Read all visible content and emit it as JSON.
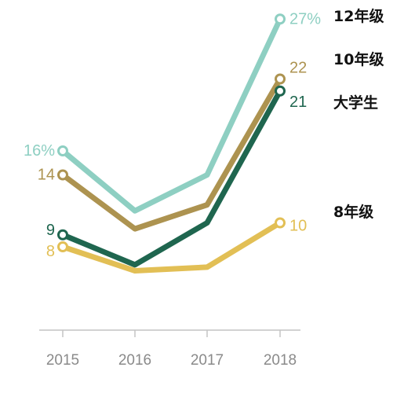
{
  "chart_data": {
    "type": "line",
    "x": [
      "2015",
      "2016",
      "2017",
      "2018"
    ],
    "series": [
      {
        "name": "12年级",
        "color": "#8ecfc2",
        "values": [
          16,
          11,
          14,
          27
        ],
        "start_label": "16%",
        "end_label": "27%"
      },
      {
        "name": "10年级",
        "color": "#ad9350",
        "values": [
          14,
          9.5,
          11.5,
          22
        ],
        "start_label": "14",
        "end_label": "22"
      },
      {
        "name": "大学生",
        "color": "#1f664f",
        "values": [
          9,
          6.5,
          10,
          21
        ],
        "start_label": "9",
        "end_label": "21"
      },
      {
        "name": "8年级",
        "color": "#e2bf55",
        "values": [
          8,
          6,
          6.3,
          10
        ],
        "start_label": "8",
        "end_label": "10"
      }
    ],
    "ylim": [
      0,
      28
    ],
    "grid": false,
    "legend": "right, inline labels",
    "axis_color": "#c4c4c4"
  }
}
